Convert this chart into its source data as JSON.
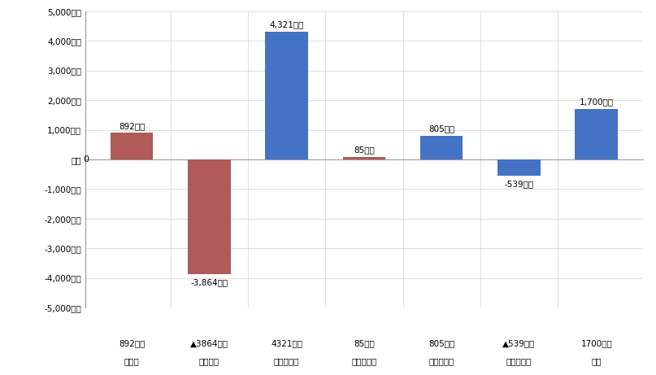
{
  "categories_line1": [
    "892万円",
    "▲3864万円",
    "4321万円",
    "85万円",
    "805万円",
    "▲539万円",
    "1700万円"
  ],
  "categories_line2": [
    "入湯税",
    "たばこ税",
    "軽自動車税",
    "固定資産税",
    "法人町民税",
    "個人町民税",
    "総額"
  ],
  "values": [
    892,
    -3864,
    4321,
    85,
    805,
    -539,
    1700
  ],
  "bar_colors": [
    "#b05a5a",
    "#b05a5a",
    "#4472c4",
    "#b05a5a",
    "#4472c4",
    "#4472c4",
    "#4472c4"
  ],
  "annot_labels": [
    "892万円",
    "-3,864万円",
    "4,321万円",
    "85万円",
    "805万円",
    "-539万円",
    "1,700万円"
  ],
  "ylim": [
    -5000,
    5000
  ],
  "yticks": [
    -5000,
    -4000,
    -3000,
    -2000,
    -1000,
    0,
    1000,
    2000,
    3000,
    4000,
    5000
  ],
  "ytick_labels": [
    "-5,000万円",
    "-4,000万円",
    "-3,000万円",
    "-2,000万円",
    "-1,000万円",
    "万円",
    "1,000万円",
    "2,000万円",
    "3,000万円",
    "4,000万円",
    "5,000万円"
  ],
  "zero_label": "0",
  "background_color": "#ffffff",
  "grid_color": "#d0d0d0",
  "spine_color": "#999999"
}
